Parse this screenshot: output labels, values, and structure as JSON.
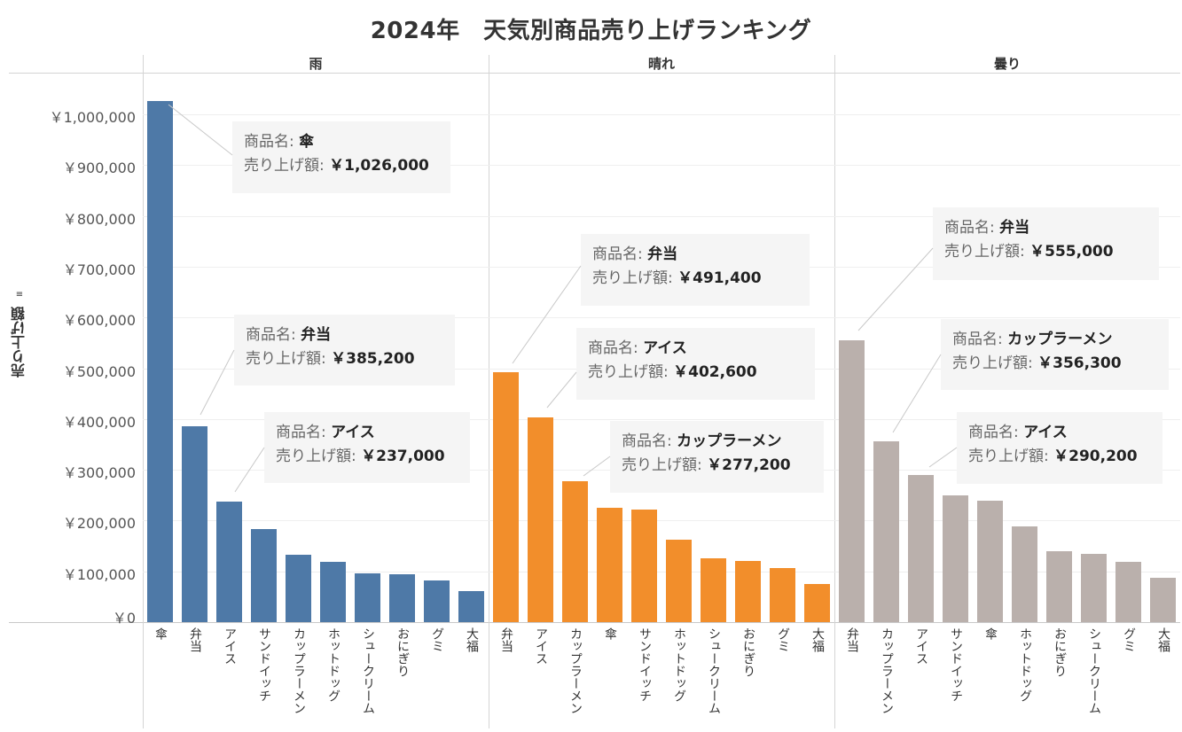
{
  "title": "2024年　天気別商品売り上げランキング",
  "chart_data": [
    {
      "type": "bar",
      "panel": "雨",
      "color": "#4e79a7",
      "categories": [
        "傘",
        "弁当",
        "アイス",
        "サンドイッチ",
        "カップラーメン",
        "ホットドッグ",
        "シュークリーム",
        "おにぎり",
        "グミ",
        "大福"
      ],
      "values": [
        1026000,
        385200,
        237000,
        184000,
        132000,
        119000,
        96000,
        95000,
        82000,
        61000
      ],
      "annotations": [
        {
          "item": "傘",
          "amount": "￥1,026,000"
        },
        {
          "item": "弁当",
          "amount": "￥385,200"
        },
        {
          "item": "アイス",
          "amount": "￥237,000"
        }
      ]
    },
    {
      "type": "bar",
      "panel": "晴れ",
      "color": "#f28e2b",
      "categories": [
        "弁当",
        "アイス",
        "カップラーメン",
        "傘",
        "サンドイッチ",
        "ホットドッグ",
        "シュークリーム",
        "おにぎり",
        "グミ",
        "大福"
      ],
      "values": [
        491400,
        402600,
        277200,
        226000,
        221000,
        163000,
        125000,
        121000,
        107000,
        75000
      ],
      "annotations": [
        {
          "item": "弁当",
          "amount": "￥491,400"
        },
        {
          "item": "アイス",
          "amount": "￥402,600"
        },
        {
          "item": "カップラーメン",
          "amount": "￥277,200"
        }
      ]
    },
    {
      "type": "bar",
      "panel": "曇り",
      "color": "#bab0ac",
      "categories": [
        "弁当",
        "カップラーメン",
        "アイス",
        "サンドイッチ",
        "傘",
        "ホットドッグ",
        "おにぎり",
        "シュークリーム",
        "グミ",
        "大福"
      ],
      "values": [
        555000,
        356300,
        290200,
        249000,
        239000,
        189000,
        140000,
        135000,
        119000,
        88000
      ],
      "annotations": [
        {
          "item": "弁当",
          "amount": "￥555,000"
        },
        {
          "item": "カップラーメン",
          "amount": "￥356,300"
        },
        {
          "item": "アイス",
          "amount": "￥290,200"
        }
      ]
    }
  ],
  "axis": {
    "ylabel": "売り上げ額",
    "ylim": [
      0,
      1050000
    ],
    "ticks": [
      "￥0",
      "￥100,000",
      "￥200,000",
      "￥300,000",
      "￥400,000",
      "￥500,000",
      "￥600,000",
      "￥700,000",
      "￥800,000",
      "￥900,000",
      "￥1,000,000"
    ],
    "grid": true,
    "sort_icon": "sort-descending-icon"
  },
  "tooltip_labels": {
    "name": "商品名: ",
    "amount": "売り上げ額: "
  }
}
